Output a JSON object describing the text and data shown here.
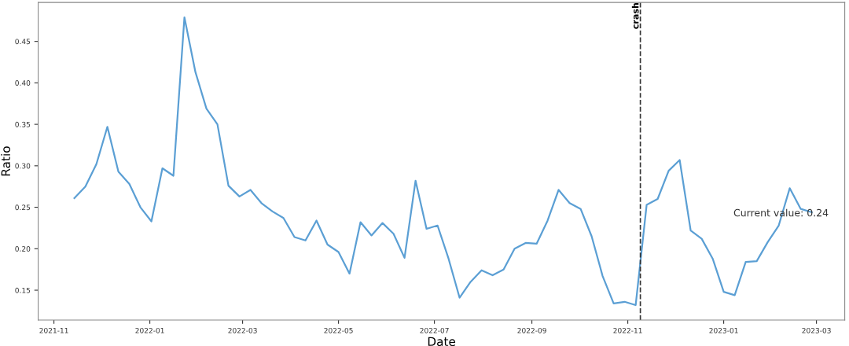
{
  "chart_data": {
    "type": "line",
    "xlabel": "Date",
    "ylabel": "Ratio",
    "x": [
      "2021-11-14",
      "2021-11-21",
      "2021-11-28",
      "2021-12-05",
      "2021-12-12",
      "2021-12-19",
      "2021-12-26",
      "2022-01-02",
      "2022-01-09",
      "2022-01-16",
      "2022-01-23",
      "2022-01-30",
      "2022-02-06",
      "2022-02-13",
      "2022-02-20",
      "2022-02-27",
      "2022-03-06",
      "2022-03-13",
      "2022-03-20",
      "2022-03-27",
      "2022-04-03",
      "2022-04-10",
      "2022-04-17",
      "2022-04-24",
      "2022-05-01",
      "2022-05-08",
      "2022-05-15",
      "2022-05-22",
      "2022-05-29",
      "2022-06-05",
      "2022-06-12",
      "2022-06-19",
      "2022-06-26",
      "2022-07-03",
      "2022-07-10",
      "2022-07-17",
      "2022-07-24",
      "2022-07-31",
      "2022-08-07",
      "2022-08-14",
      "2022-08-21",
      "2022-08-28",
      "2022-09-04",
      "2022-09-11",
      "2022-09-18",
      "2022-09-25",
      "2022-10-02",
      "2022-10-09",
      "2022-10-16",
      "2022-10-23",
      "2022-10-30",
      "2022-11-06",
      "2022-11-13",
      "2022-11-20",
      "2022-11-27",
      "2022-12-04",
      "2022-12-11",
      "2022-12-18",
      "2022-12-25",
      "2023-01-01",
      "2023-01-08",
      "2023-01-15",
      "2023-01-22",
      "2023-01-29",
      "2023-02-05",
      "2023-02-12",
      "2023-02-19",
      "2023-02-26"
    ],
    "series": [
      {
        "color": "#5b9fd4",
        "values": [
          0.261,
          0.275,
          0.302,
          0.347,
          0.293,
          0.278,
          0.25,
          0.233,
          0.297,
          0.288,
          0.479,
          0.413,
          0.369,
          0.35,
          0.276,
          0.263,
          0.271,
          0.255,
          0.245,
          0.237,
          0.214,
          0.21,
          0.234,
          0.205,
          0.196,
          0.17,
          0.232,
          0.216,
          0.231,
          0.218,
          0.189,
          0.282,
          0.224,
          0.228,
          0.188,
          0.141,
          0.16,
          0.174,
          0.168,
          0.175,
          0.2,
          0.207,
          0.206,
          0.234,
          0.271,
          0.255,
          0.248,
          0.215,
          0.167,
          0.134,
          0.136,
          0.132,
          0.253,
          0.26,
          0.294,
          0.307,
          0.222,
          0.212,
          0.188,
          0.148,
          0.144,
          0.184,
          0.185,
          0.208,
          0.228,
          0.273,
          0.248,
          0.244
        ]
      }
    ],
    "xlim": [
      "2021-10-22",
      "2023-03-19"
    ],
    "xticks": [
      {
        "value": "2021-11-01",
        "label": "2021-11"
      },
      {
        "value": "2022-01-01",
        "label": "2022-01"
      },
      {
        "value": "2022-03-01",
        "label": "2022-03"
      },
      {
        "value": "2022-05-01",
        "label": "2022-05"
      },
      {
        "value": "2022-07-01",
        "label": "2022-07"
      },
      {
        "value": "2022-09-01",
        "label": "2022-09"
      },
      {
        "value": "2022-11-01",
        "label": "2022-11"
      },
      {
        "value": "2023-01-01",
        "label": "2023-01"
      },
      {
        "value": "2023-03-01",
        "label": "2023-03"
      }
    ],
    "ylim": [
      0.114,
      0.497
    ],
    "yticks": [
      {
        "value": 0.15,
        "label": "0.15"
      },
      {
        "value": 0.2,
        "label": "0.20"
      },
      {
        "value": 0.25,
        "label": "0.25"
      },
      {
        "value": 0.3,
        "label": "0.30"
      },
      {
        "value": 0.35,
        "label": "0.35"
      },
      {
        "value": 0.4,
        "label": "0.40"
      },
      {
        "value": 0.45,
        "label": "0.45"
      }
    ],
    "ref_lines": [
      {
        "axis": "x",
        "value": "2022-11-09",
        "label": "crash",
        "color": "#333333",
        "line_style": "dashed"
      }
    ],
    "annotations": [
      "Current value: 0.24"
    ],
    "grid": false,
    "line_style": "solid",
    "marker": "none"
  }
}
